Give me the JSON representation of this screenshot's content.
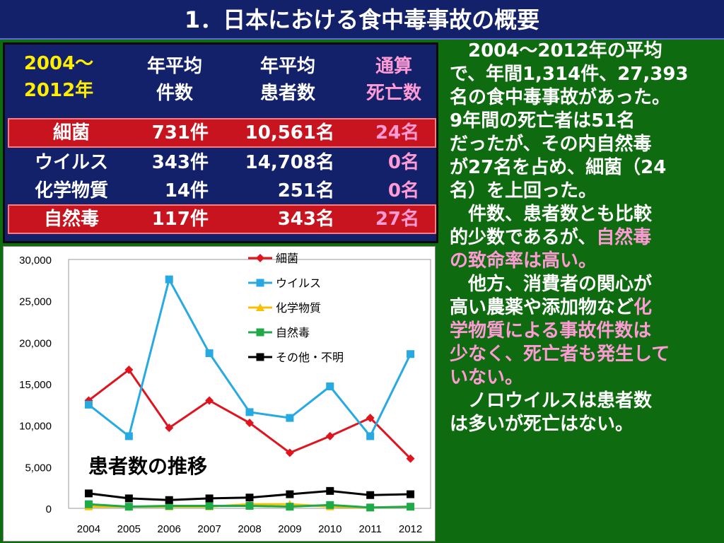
{
  "title": "1．日本における食中毒事故の概要",
  "table": {
    "period": [
      "2004～",
      "2012年"
    ],
    "col_cases": [
      "年平均",
      "件数"
    ],
    "col_patients": [
      "年平均",
      "患者数"
    ],
    "col_deaths": [
      "通算",
      "死亡数"
    ],
    "rows": [
      {
        "name": "細菌",
        "cases": "731件",
        "patients": "10,561名",
        "deaths": "24名",
        "highlight": true
      },
      {
        "name": "ウイルス",
        "cases": "343件",
        "patients": "14,708名",
        "deaths": "0名",
        "highlight": false
      },
      {
        "name": "化学物質",
        "cases": "14件",
        "patients": "251名",
        "deaths": "0名",
        "highlight": false
      },
      {
        "name": "自然毒",
        "cases": "117件",
        "patients": "343名",
        "deaths": "27名",
        "highlight": true
      }
    ]
  },
  "right_text": {
    "p1": [
      "　2004～2012年の平均",
      "で、年間1,314件、27,393",
      "名の食中毒事故があった。",
      "9年間の死亡者は51名",
      "だったが、その内自然毒",
      "が27名を占め、細菌（24",
      "名）を上回った。"
    ],
    "p2_lines": [
      "　件数、患者数とも比較",
      "的少数であるが、",
      "の致命率は高い。"
    ],
    "p2_pink_a": "自然毒",
    "p3_lines": [
      "　他方、消費者の関心が",
      "高い農薬や添加物など",
      "学物質による事故件数は",
      "少なく、死亡者も発生して",
      "いない。"
    ],
    "p3_pink_a": "化",
    "p4": [
      "　ノロウイルスは患者数",
      "は多いが死亡はない。"
    ]
  },
  "chart_data": {
    "type": "line",
    "title": "患者数の推移",
    "xlabel": "",
    "ylabel": "",
    "categories": [
      "2004",
      "2005",
      "2006",
      "2007",
      "2008",
      "2009",
      "2010",
      "2011",
      "2012"
    ],
    "ylim": [
      0,
      30000
    ],
    "yticks": [
      "0",
      "5,000",
      "10,000",
      "15,000",
      "20,000",
      "25,000",
      "30,000"
    ],
    "legend_position": "top-right",
    "grid": false,
    "series": [
      {
        "name": "細菌",
        "color": "#e0141e",
        "marker": "diamond",
        "values": [
          13000,
          16700,
          9700,
          13000,
          10300,
          6700,
          8700,
          10900,
          6000
        ]
      },
      {
        "name": "ウイルス",
        "color": "#27aae1",
        "marker": "square",
        "values": [
          12500,
          8700,
          27600,
          18700,
          11600,
          10900,
          14700,
          8700,
          18600
        ]
      },
      {
        "name": "化学物質",
        "color": "#f5c200",
        "marker": "triangle",
        "values": [
          200,
          200,
          200,
          200,
          500,
          500,
          200,
          100,
          200
        ]
      },
      {
        "name": "自然毒",
        "color": "#1faa4a",
        "marker": "square",
        "values": [
          500,
          200,
          300,
          300,
          300,
          200,
          400,
          100,
          200
        ]
      },
      {
        "name": "その他・不明",
        "color": "#000000",
        "marker": "square",
        "values": [
          1800,
          1200,
          1000,
          1200,
          1300,
          1700,
          2100,
          1600,
          1700
        ]
      }
    ]
  }
}
